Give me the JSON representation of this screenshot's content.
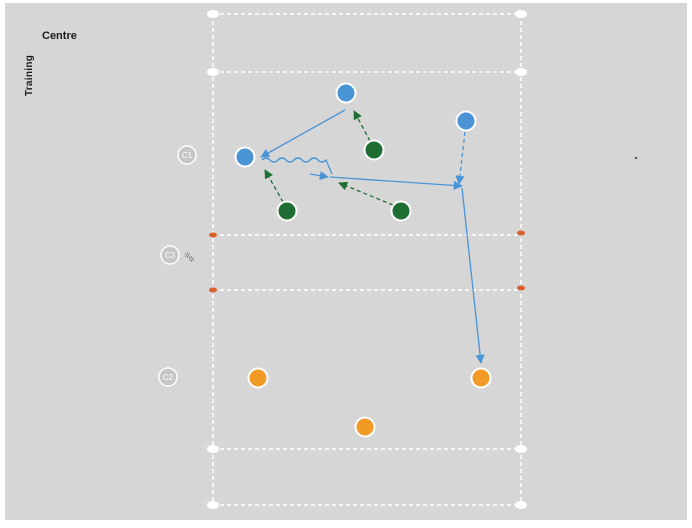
{
  "logo": {
    "word_vertical": "Training",
    "word_horizontal": "Centre"
  },
  "colors": {
    "background": "#d6d6d6",
    "page": "#ffffff",
    "lines": "#ffffff",
    "cone": "#d9602a",
    "attacker": "#4a94d6",
    "defender": "#1e6e33",
    "support": "#f29a26",
    "pass": "#4a94d6",
    "press": "#1e6e33"
  },
  "cones": [
    {
      "name": "cone-c1",
      "label": "C1"
    },
    {
      "name": "cone-c3",
      "label": "C3"
    },
    {
      "name": "cone-c2",
      "label": "C2"
    }
  ],
  "players": {
    "attackers": 3,
    "defenders": 3,
    "support": 3
  }
}
